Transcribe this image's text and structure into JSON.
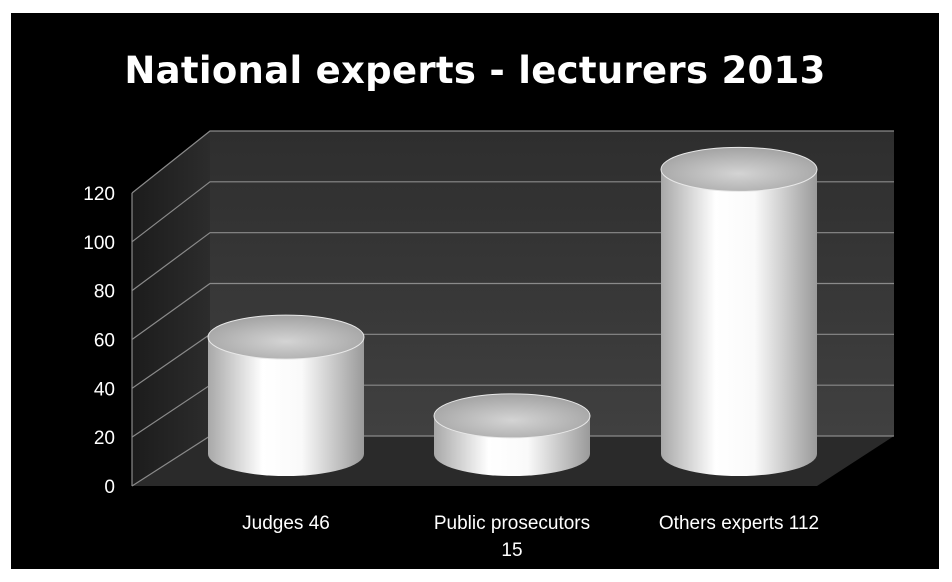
{
  "chart_data": {
    "type": "bar",
    "title": "National experts - lecturers  2013",
    "categories": [
      "Judges 46",
      "Public prosecutors 15",
      "Others experts 112"
    ],
    "category_lines": [
      [
        "Judges 46"
      ],
      [
        "Public prosecutors",
        "15"
      ],
      [
        "Others experts 112"
      ]
    ],
    "values": [
      46,
      15,
      112
    ],
    "ylim": [
      0,
      120
    ],
    "yticks": [
      0,
      20,
      40,
      60,
      80,
      100,
      120
    ],
    "grid": true,
    "style": "3d-cylinder",
    "colors": {
      "background": "#000000",
      "wall": "#3a3a3a",
      "floor": "#2a2a2a",
      "gridline": "#8a8a8a",
      "bar": "#ffffff",
      "text": "#ffffff"
    }
  }
}
